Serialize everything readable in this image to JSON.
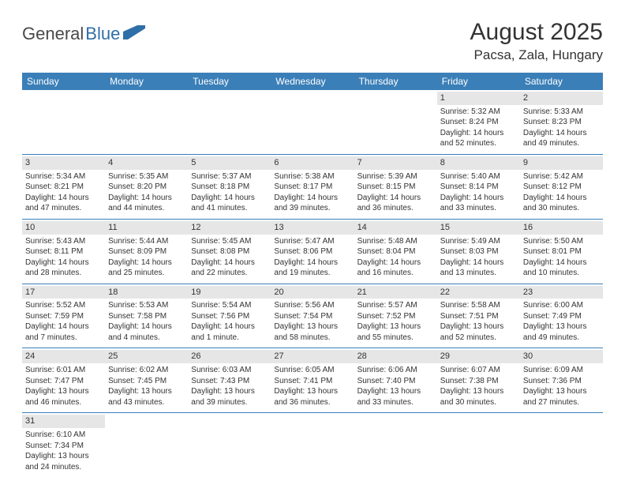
{
  "logo": {
    "part1": "General",
    "part2": "Blue"
  },
  "title": "August 2025",
  "location": "Pacsa, Zala, Hungary",
  "colors": {
    "header_bg": "#3b7fb8",
    "header_text": "#ffffff",
    "daynum_bg": "#e6e6e6",
    "border": "#3b7fb8",
    "logo_gray": "#4a4a4a",
    "logo_blue": "#2f6fa8"
  },
  "weekdays": [
    "Sunday",
    "Monday",
    "Tuesday",
    "Wednesday",
    "Thursday",
    "Friday",
    "Saturday"
  ],
  "weeks": [
    [
      null,
      null,
      null,
      null,
      null,
      {
        "num": "1",
        "sunrise": "Sunrise: 5:32 AM",
        "sunset": "Sunset: 8:24 PM",
        "day1": "Daylight: 14 hours",
        "day2": "and 52 minutes."
      },
      {
        "num": "2",
        "sunrise": "Sunrise: 5:33 AM",
        "sunset": "Sunset: 8:23 PM",
        "day1": "Daylight: 14 hours",
        "day2": "and 49 minutes."
      }
    ],
    [
      {
        "num": "3",
        "sunrise": "Sunrise: 5:34 AM",
        "sunset": "Sunset: 8:21 PM",
        "day1": "Daylight: 14 hours",
        "day2": "and 47 minutes."
      },
      {
        "num": "4",
        "sunrise": "Sunrise: 5:35 AM",
        "sunset": "Sunset: 8:20 PM",
        "day1": "Daylight: 14 hours",
        "day2": "and 44 minutes."
      },
      {
        "num": "5",
        "sunrise": "Sunrise: 5:37 AM",
        "sunset": "Sunset: 8:18 PM",
        "day1": "Daylight: 14 hours",
        "day2": "and 41 minutes."
      },
      {
        "num": "6",
        "sunrise": "Sunrise: 5:38 AM",
        "sunset": "Sunset: 8:17 PM",
        "day1": "Daylight: 14 hours",
        "day2": "and 39 minutes."
      },
      {
        "num": "7",
        "sunrise": "Sunrise: 5:39 AM",
        "sunset": "Sunset: 8:15 PM",
        "day1": "Daylight: 14 hours",
        "day2": "and 36 minutes."
      },
      {
        "num": "8",
        "sunrise": "Sunrise: 5:40 AM",
        "sunset": "Sunset: 8:14 PM",
        "day1": "Daylight: 14 hours",
        "day2": "and 33 minutes."
      },
      {
        "num": "9",
        "sunrise": "Sunrise: 5:42 AM",
        "sunset": "Sunset: 8:12 PM",
        "day1": "Daylight: 14 hours",
        "day2": "and 30 minutes."
      }
    ],
    [
      {
        "num": "10",
        "sunrise": "Sunrise: 5:43 AM",
        "sunset": "Sunset: 8:11 PM",
        "day1": "Daylight: 14 hours",
        "day2": "and 28 minutes."
      },
      {
        "num": "11",
        "sunrise": "Sunrise: 5:44 AM",
        "sunset": "Sunset: 8:09 PM",
        "day1": "Daylight: 14 hours",
        "day2": "and 25 minutes."
      },
      {
        "num": "12",
        "sunrise": "Sunrise: 5:45 AM",
        "sunset": "Sunset: 8:08 PM",
        "day1": "Daylight: 14 hours",
        "day2": "and 22 minutes."
      },
      {
        "num": "13",
        "sunrise": "Sunrise: 5:47 AM",
        "sunset": "Sunset: 8:06 PM",
        "day1": "Daylight: 14 hours",
        "day2": "and 19 minutes."
      },
      {
        "num": "14",
        "sunrise": "Sunrise: 5:48 AM",
        "sunset": "Sunset: 8:04 PM",
        "day1": "Daylight: 14 hours",
        "day2": "and 16 minutes."
      },
      {
        "num": "15",
        "sunrise": "Sunrise: 5:49 AM",
        "sunset": "Sunset: 8:03 PM",
        "day1": "Daylight: 14 hours",
        "day2": "and 13 minutes."
      },
      {
        "num": "16",
        "sunrise": "Sunrise: 5:50 AM",
        "sunset": "Sunset: 8:01 PM",
        "day1": "Daylight: 14 hours",
        "day2": "and 10 minutes."
      }
    ],
    [
      {
        "num": "17",
        "sunrise": "Sunrise: 5:52 AM",
        "sunset": "Sunset: 7:59 PM",
        "day1": "Daylight: 14 hours",
        "day2": "and 7 minutes."
      },
      {
        "num": "18",
        "sunrise": "Sunrise: 5:53 AM",
        "sunset": "Sunset: 7:58 PM",
        "day1": "Daylight: 14 hours",
        "day2": "and 4 minutes."
      },
      {
        "num": "19",
        "sunrise": "Sunrise: 5:54 AM",
        "sunset": "Sunset: 7:56 PM",
        "day1": "Daylight: 14 hours",
        "day2": "and 1 minute."
      },
      {
        "num": "20",
        "sunrise": "Sunrise: 5:56 AM",
        "sunset": "Sunset: 7:54 PM",
        "day1": "Daylight: 13 hours",
        "day2": "and 58 minutes."
      },
      {
        "num": "21",
        "sunrise": "Sunrise: 5:57 AM",
        "sunset": "Sunset: 7:52 PM",
        "day1": "Daylight: 13 hours",
        "day2": "and 55 minutes."
      },
      {
        "num": "22",
        "sunrise": "Sunrise: 5:58 AM",
        "sunset": "Sunset: 7:51 PM",
        "day1": "Daylight: 13 hours",
        "day2": "and 52 minutes."
      },
      {
        "num": "23",
        "sunrise": "Sunrise: 6:00 AM",
        "sunset": "Sunset: 7:49 PM",
        "day1": "Daylight: 13 hours",
        "day2": "and 49 minutes."
      }
    ],
    [
      {
        "num": "24",
        "sunrise": "Sunrise: 6:01 AM",
        "sunset": "Sunset: 7:47 PM",
        "day1": "Daylight: 13 hours",
        "day2": "and 46 minutes."
      },
      {
        "num": "25",
        "sunrise": "Sunrise: 6:02 AM",
        "sunset": "Sunset: 7:45 PM",
        "day1": "Daylight: 13 hours",
        "day2": "and 43 minutes."
      },
      {
        "num": "26",
        "sunrise": "Sunrise: 6:03 AM",
        "sunset": "Sunset: 7:43 PM",
        "day1": "Daylight: 13 hours",
        "day2": "and 39 minutes."
      },
      {
        "num": "27",
        "sunrise": "Sunrise: 6:05 AM",
        "sunset": "Sunset: 7:41 PM",
        "day1": "Daylight: 13 hours",
        "day2": "and 36 minutes."
      },
      {
        "num": "28",
        "sunrise": "Sunrise: 6:06 AM",
        "sunset": "Sunset: 7:40 PM",
        "day1": "Daylight: 13 hours",
        "day2": "and 33 minutes."
      },
      {
        "num": "29",
        "sunrise": "Sunrise: 6:07 AM",
        "sunset": "Sunset: 7:38 PM",
        "day1": "Daylight: 13 hours",
        "day2": "and 30 minutes."
      },
      {
        "num": "30",
        "sunrise": "Sunrise: 6:09 AM",
        "sunset": "Sunset: 7:36 PM",
        "day1": "Daylight: 13 hours",
        "day2": "and 27 minutes."
      }
    ],
    [
      {
        "num": "31",
        "sunrise": "Sunrise: 6:10 AM",
        "sunset": "Sunset: 7:34 PM",
        "day1": "Daylight: 13 hours",
        "day2": "and 24 minutes."
      },
      null,
      null,
      null,
      null,
      null,
      null
    ]
  ]
}
